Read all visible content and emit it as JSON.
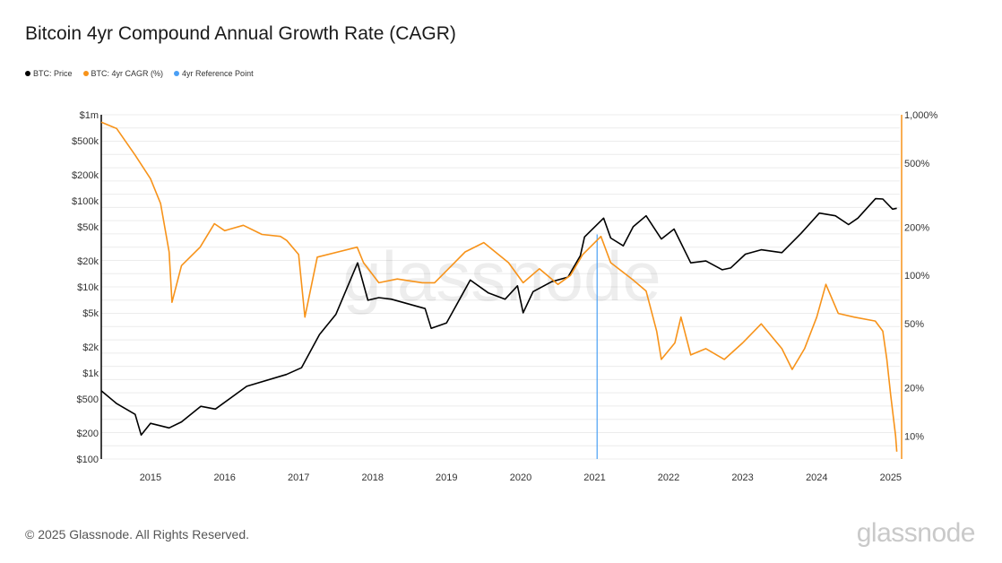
{
  "title": "Bitcoin 4yr Compound Annual Growth Rate (CAGR)",
  "legend": [
    {
      "label": "BTC: Price",
      "color": "#000000"
    },
    {
      "label": "BTC: 4yr CAGR (%)",
      "color": "#f7931a"
    },
    {
      "label": "4yr Reference Point",
      "color": "#4a9ff5"
    }
  ],
  "footer": "© 2025 Glassnode. All Rights Reserved.",
  "brand": "glassnode",
  "watermark": "glassnode",
  "chart_data": {
    "type": "line",
    "title": "Bitcoin 4yr Compound Annual Growth Rate (CAGR)",
    "x_ticks": [
      "2015",
      "2016",
      "2017",
      "2018",
      "2019",
      "2020",
      "2021",
      "2022",
      "2023",
      "2024",
      "2025"
    ],
    "x_range": [
      "2014-07-01",
      "2025-04-15"
    ],
    "grid": true,
    "y_left": {
      "scale": "log",
      "range": [
        100,
        1000000
      ],
      "ticks": [
        {
          "v": 100,
          "label": "$100"
        },
        {
          "v": 200,
          "label": "$200"
        },
        {
          "v": 500,
          "label": "$500"
        },
        {
          "v": 1000,
          "label": "$1k"
        },
        {
          "v": 2000,
          "label": "$2k"
        },
        {
          "v": 5000,
          "label": "$5k"
        },
        {
          "v": 10000,
          "label": "$10k"
        },
        {
          "v": 20000,
          "label": "$20k"
        },
        {
          "v": 50000,
          "label": "$50k"
        },
        {
          "v": 100000,
          "label": "$100k"
        },
        {
          "v": 200000,
          "label": "$200k"
        },
        {
          "v": 500000,
          "label": "$500k"
        },
        {
          "v": 1000000,
          "label": "$1m"
        }
      ]
    },
    "y_right": {
      "scale": "log",
      "range": [
        7.2,
        1000
      ],
      "ticks": [
        {
          "v": 10,
          "label": "10%"
        },
        {
          "v": 20,
          "label": "20%"
        },
        {
          "v": 50,
          "label": "50%"
        },
        {
          "v": 100,
          "label": "100%"
        },
        {
          "v": 200,
          "label": "200%"
        },
        {
          "v": 500,
          "label": "500%"
        },
        {
          "v": 1000,
          "label": "1,000%"
        }
      ]
    },
    "reference_line": {
      "name": "4yr Reference Point",
      "date": "2021-03-13",
      "color": "#4a9ff5"
    },
    "series": [
      {
        "name": "BTC: Price",
        "axis": "left",
        "color": "#000000",
        "points": [
          [
            "2014-07-01",
            620
          ],
          [
            "2014-09-15",
            440
          ],
          [
            "2014-12-15",
            330
          ],
          [
            "2015-01-14",
            190
          ],
          [
            "2015-03-01",
            260
          ],
          [
            "2015-06-01",
            230
          ],
          [
            "2015-08-01",
            270
          ],
          [
            "2015-11-04",
            410
          ],
          [
            "2016-01-15",
            380
          ],
          [
            "2016-06-18",
            700
          ],
          [
            "2016-12-31",
            960
          ],
          [
            "2017-03-15",
            1150
          ],
          [
            "2017-06-12",
            2800
          ],
          [
            "2017-09-01",
            4800
          ],
          [
            "2017-12-17",
            19000
          ],
          [
            "2018-02-06",
            7000
          ],
          [
            "2018-04-01",
            7500
          ],
          [
            "2018-06-01",
            7200
          ],
          [
            "2018-11-15",
            5600
          ],
          [
            "2018-12-15",
            3300
          ],
          [
            "2019-03-01",
            3800
          ],
          [
            "2019-06-26",
            12000
          ],
          [
            "2019-09-24",
            8500
          ],
          [
            "2019-12-15",
            7200
          ],
          [
            "2020-02-14",
            10300
          ],
          [
            "2020-03-13",
            5000
          ],
          [
            "2020-05-01",
            8800
          ],
          [
            "2020-08-01",
            11500
          ],
          [
            "2020-10-20",
            13000
          ],
          [
            "2020-12-20",
            23000
          ],
          [
            "2021-01-10",
            38000
          ],
          [
            "2021-04-14",
            63000
          ],
          [
            "2021-05-19",
            37000
          ],
          [
            "2021-07-20",
            30000
          ],
          [
            "2021-09-07",
            50000
          ],
          [
            "2021-11-10",
            67000
          ],
          [
            "2022-01-24",
            36000
          ],
          [
            "2022-03-28",
            47000
          ],
          [
            "2022-06-18",
            19000
          ],
          [
            "2022-09-01",
            20000
          ],
          [
            "2022-11-21",
            15800
          ],
          [
            "2023-01-01",
            16600
          ],
          [
            "2023-03-15",
            24000
          ],
          [
            "2023-06-01",
            27000
          ],
          [
            "2023-09-11",
            25000
          ],
          [
            "2023-12-15",
            42000
          ],
          [
            "2024-03-14",
            72000
          ],
          [
            "2024-06-01",
            67000
          ],
          [
            "2024-08-05",
            53000
          ],
          [
            "2024-09-20",
            63000
          ],
          [
            "2024-12-16",
            106000
          ],
          [
            "2025-01-21",
            105000
          ],
          [
            "2025-03-10",
            80000
          ],
          [
            "2025-03-31",
            82000
          ]
        ]
      },
      {
        "name": "BTC: 4yr CAGR (%)",
        "axis": "right",
        "color": "#f7931a",
        "points": [
          [
            "2014-07-01",
            900
          ],
          [
            "2014-09-15",
            820
          ],
          [
            "2014-12-15",
            560
          ],
          [
            "2015-03-01",
            400
          ],
          [
            "2015-04-20",
            280
          ],
          [
            "2015-06-01",
            140
          ],
          [
            "2015-06-15",
            68
          ],
          [
            "2015-08-01",
            115
          ],
          [
            "2015-11-01",
            150
          ],
          [
            "2016-01-10",
            210
          ],
          [
            "2016-03-01",
            190
          ],
          [
            "2016-06-01",
            205
          ],
          [
            "2016-09-01",
            180
          ],
          [
            "2016-12-01",
            175
          ],
          [
            "2017-01-01",
            165
          ],
          [
            "2017-03-01",
            135
          ],
          [
            "2017-04-01",
            55
          ],
          [
            "2017-06-01",
            130
          ],
          [
            "2017-12-15",
            150
          ],
          [
            "2018-01-15",
            120
          ],
          [
            "2018-04-01",
            90
          ],
          [
            "2018-07-01",
            95
          ],
          [
            "2018-11-01",
            90
          ],
          [
            "2019-01-01",
            90
          ],
          [
            "2019-06-01",
            140
          ],
          [
            "2019-09-01",
            160
          ],
          [
            "2020-01-01",
            120
          ],
          [
            "2020-03-13",
            90
          ],
          [
            "2020-06-01",
            110
          ],
          [
            "2020-09-01",
            88
          ],
          [
            "2020-11-01",
            100
          ],
          [
            "2021-01-01",
            135
          ],
          [
            "2021-04-01",
            175
          ],
          [
            "2021-05-19",
            120
          ],
          [
            "2021-09-01",
            95
          ],
          [
            "2021-11-10",
            80
          ],
          [
            "2022-01-01",
            45
          ],
          [
            "2022-01-24",
            30
          ],
          [
            "2022-04-01",
            38
          ],
          [
            "2022-05-01",
            55
          ],
          [
            "2022-06-18",
            32
          ],
          [
            "2022-09-01",
            35
          ],
          [
            "2022-12-01",
            30
          ],
          [
            "2023-03-01",
            38
          ],
          [
            "2023-06-01",
            50
          ],
          [
            "2023-09-11",
            35
          ],
          [
            "2023-11-01",
            26
          ],
          [
            "2024-01-01",
            35
          ],
          [
            "2024-03-01",
            55
          ],
          [
            "2024-04-15",
            88
          ],
          [
            "2024-06-15",
            58
          ],
          [
            "2024-09-01",
            55
          ],
          [
            "2024-12-15",
            52
          ],
          [
            "2025-01-21",
            45
          ],
          [
            "2025-02-10",
            30
          ],
          [
            "2025-03-01",
            18
          ],
          [
            "2025-03-25",
            10
          ],
          [
            "2025-03-31",
            8
          ]
        ]
      }
    ]
  }
}
